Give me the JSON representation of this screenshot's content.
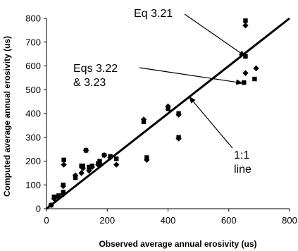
{
  "chart_data": {
    "type": "scatter",
    "xlabel": "Observed average annual erosivity (us)",
    "ylabel": "Computed average annual erosivity (us)",
    "xlim": [
      0,
      800
    ],
    "ylim": [
      0,
      800
    ],
    "xticks": [
      "0",
      "200",
      "400",
      "600",
      "800"
    ],
    "yticks": [
      "0",
      "100",
      "200",
      "300",
      "400",
      "500",
      "600",
      "700",
      "800"
    ],
    "grid": false,
    "legend": "none",
    "one_to_one_line": {
      "x": [
        0,
        800
      ],
      "y": [
        0,
        800
      ]
    },
    "annotations": [
      {
        "lines": [
          "Eq 3.21"
        ],
        "target": [
          655,
          640
        ]
      },
      {
        "lines": [
          "Eqs 3.22",
          "& 3.23"
        ],
        "target": [
          645,
          528
        ]
      },
      {
        "lines": [
          "1:1",
          "line"
        ],
        "target": [
          470,
          470
        ]
      }
    ],
    "series": [
      {
        "marker": "diamond",
        "points": [
          [
            15,
            15
          ],
          [
            25,
            42
          ],
          [
            40,
            48
          ],
          [
            55,
            95
          ],
          [
            57,
            185
          ],
          [
            55,
            60
          ],
          [
            95,
            140
          ],
          [
            115,
            150
          ],
          [
            120,
            170
          ],
          [
            130,
            245
          ],
          [
            140,
            160
          ],
          [
            150,
            175
          ],
          [
            170,
            185
          ],
          [
            175,
            190
          ],
          [
            190,
            225
          ],
          [
            210,
            215
          ],
          [
            230,
            185
          ],
          [
            320,
            375
          ],
          [
            330,
            205
          ],
          [
            400,
            430
          ],
          [
            435,
            395
          ],
          [
            435,
            295
          ],
          [
            655,
            770
          ],
          [
            655,
            570
          ],
          [
            690,
            590
          ]
        ]
      },
      {
        "marker": "square",
        "points": [
          [
            15,
            15
          ],
          [
            25,
            50
          ],
          [
            40,
            55
          ],
          [
            55,
            100
          ],
          [
            57,
            205
          ],
          [
            55,
            70
          ],
          [
            95,
            130
          ],
          [
            115,
            180
          ],
          [
            120,
            180
          ],
          [
            130,
            245
          ],
          [
            140,
            175
          ],
          [
            150,
            180
          ],
          [
            170,
            190
          ],
          [
            175,
            200
          ],
          [
            190,
            225
          ],
          [
            210,
            220
          ],
          [
            230,
            210
          ],
          [
            320,
            365
          ],
          [
            330,
            215
          ],
          [
            400,
            420
          ],
          [
            435,
            400
          ],
          [
            435,
            300
          ],
          [
            655,
            790
          ],
          [
            655,
            640
          ],
          [
            650,
            530
          ],
          [
            685,
            545
          ]
        ]
      }
    ]
  }
}
